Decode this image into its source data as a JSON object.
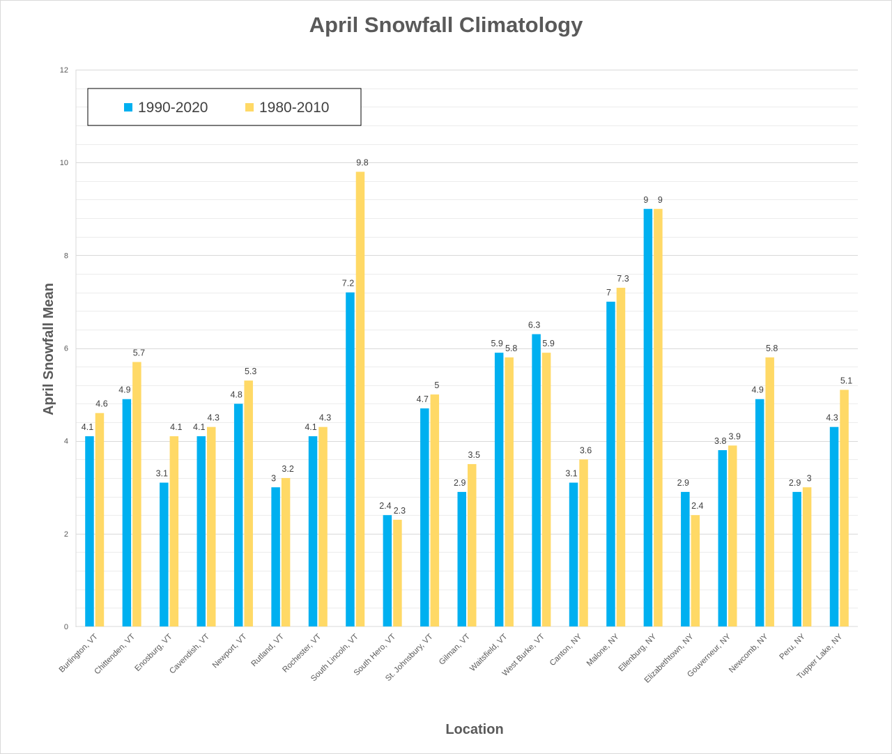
{
  "chart_data": {
    "type": "bar",
    "title": "April Snowfall Climatology",
    "xlabel": "Location",
    "ylabel": "April Snowfall Mean",
    "ylim": [
      0,
      12
    ],
    "yticks": [
      0,
      2,
      4,
      6,
      8,
      10,
      12
    ],
    "grid": true,
    "legend_position": "top-left",
    "categories": [
      "Burlington, VT",
      "Chittenden, VT",
      "Enosburg, VT",
      "Cavendish, VT",
      "Newport, VT",
      "Rutland, VT",
      "Rochester, VT",
      "South Lincoln, VT",
      "South Hero, VT",
      "St. Johnsbury, VT",
      "Gilman, VT",
      "Waitsfield, VT",
      "West Burke, VT",
      "Canton, NY",
      "Malone, NY",
      "Ellenburg, NY",
      "Elizabethtown, NY",
      "Gouverneur, NY",
      "Newcomb, NY",
      "Peru, NY",
      "Tupper Lake, NY"
    ],
    "series": [
      {
        "name": "1990-2020",
        "color": "#00B0F0",
        "values": [
          4.1,
          4.9,
          3.1,
          4.1,
          4.8,
          3,
          4.1,
          7.2,
          2.4,
          4.7,
          2.9,
          5.9,
          6.3,
          3.1,
          7,
          9,
          2.9,
          3.8,
          4.9,
          2.9,
          4.3
        ]
      },
      {
        "name": "1980-2010",
        "color": "#FFD966",
        "values": [
          4.6,
          5.7,
          4.1,
          4.3,
          5.3,
          3.2,
          4.3,
          9.8,
          2.3,
          5,
          3.5,
          5.8,
          5.9,
          3.6,
          7.3,
          9,
          2.4,
          3.9,
          5.8,
          3,
          5.1
        ]
      }
    ]
  }
}
